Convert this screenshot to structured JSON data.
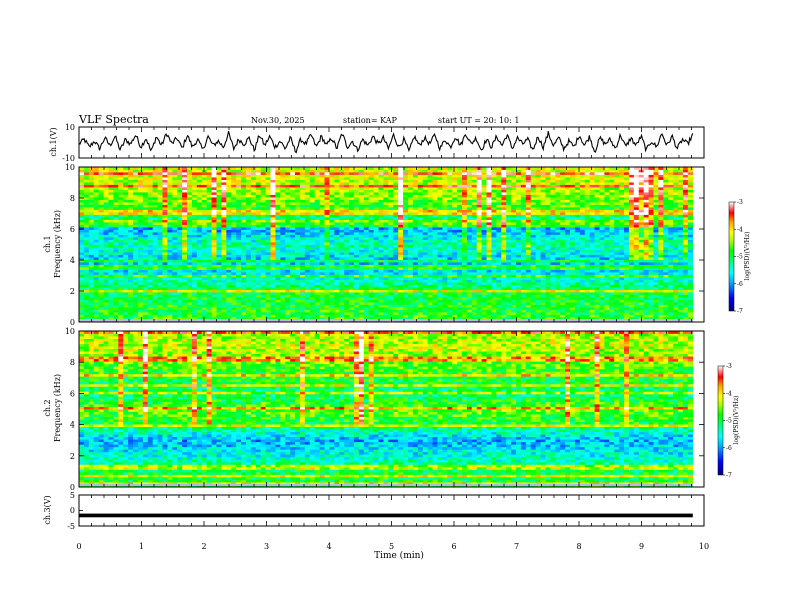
{
  "header": {
    "title": "VLF Spectra",
    "date": "Nov.30, 2025",
    "station": "station= KAP",
    "start": "start  UT  =   20: 10: 1"
  },
  "colors": {
    "scale": [
      "#000080",
      "#0000ff",
      "#00a0ff",
      "#00ffff",
      "#00ff80",
      "#00ff00",
      "#80ff00",
      "#ffff00",
      "#ffa000",
      "#ff0000",
      "#ffffff"
    ]
  },
  "chart_data": [
    {
      "type": "line",
      "id": "ch1_waveform",
      "ylabel": "ch.1(V)",
      "ylim": [
        -10,
        10
      ],
      "yticks": [
        "10",
        "-10"
      ],
      "x_range_min": [
        0,
        9.82
      ],
      "series": [
        {
          "name": "ch1",
          "values": [
            -1,
            2,
            -3,
            1,
            -4,
            3,
            -2,
            4,
            -5,
            2,
            -1,
            5,
            -3,
            3,
            -6,
            4,
            -2,
            6,
            -1,
            3,
            -4,
            5,
            -3,
            2,
            -5,
            4,
            -2,
            1,
            -3,
            6,
            -4,
            2,
            -1,
            3,
            -5,
            5,
            -2,
            4,
            -3,
            1,
            -4,
            3,
            -6,
            2,
            -1,
            5,
            -3,
            4,
            -2,
            3,
            -4,
            6,
            -3,
            1,
            -5,
            2,
            -2,
            4,
            -1,
            3,
            -4,
            5,
            -3,
            2,
            -6,
            4,
            -2,
            3,
            -1,
            5,
            -4,
            2,
            -3,
            4,
            -2,
            6,
            -1,
            3,
            -5,
            2,
            -3,
            4,
            -2,
            5,
            -4,
            3,
            -1,
            2,
            -5,
            4,
            -3,
            6,
            -2,
            3,
            -4,
            1,
            -3,
            5,
            -2,
            4,
            -6,
            3,
            -1,
            2,
            -4,
            5,
            -3,
            3,
            -2,
            4,
            -5,
            1,
            -3,
            6,
            -2,
            4,
            -4,
            2,
            -1,
            5
          ]
        }
      ]
    },
    {
      "type": "heatmap",
      "id": "ch1_spectrogram",
      "ylabel": "ch.1\nFrequency (kHz)",
      "ylabel_line1": "ch.1",
      "ylabel_line2": "Frequency (kHz)",
      "ylim": [
        0,
        10
      ],
      "yticks": [
        "0",
        "2",
        "4",
        "6",
        "8",
        "10"
      ],
      "x_range_min": [
        0,
        9.82
      ],
      "colorbar": {
        "label": "log(PSD)(V²/Hz)",
        "range": [
          -7,
          -3
        ],
        "ticks": [
          "-3",
          "-4",
          "-5",
          "-6",
          "-7"
        ]
      },
      "freq_profile_khz": [
        0,
        1,
        2,
        3,
        4,
        5,
        6,
        7,
        8,
        9,
        10
      ],
      "mean_log_psd": [
        -4.8,
        -4.9,
        -5.0,
        -5.6,
        -5.8,
        -5.3,
        -5.9,
        -4.9,
        -4.5,
        -4.3,
        -4.2
      ]
    },
    {
      "type": "heatmap",
      "id": "ch2_spectrogram",
      "ylabel": "ch.2\nFrequency (kHz)",
      "ylabel_line1": "ch.2",
      "ylabel_line2": "Frequency (kHz)",
      "ylim": [
        0,
        10
      ],
      "yticks": [
        "0",
        "2",
        "4",
        "6",
        "8",
        "10"
      ],
      "x_range_min": [
        0,
        9.82
      ],
      "colorbar": {
        "label": "log(PSD)(V²/Hz)",
        "range": [
          -7,
          -3
        ],
        "ticks": [
          "-3",
          "-4",
          "-5",
          "-6",
          "-7"
        ]
      },
      "freq_profile_khz": [
        0,
        1,
        2,
        3,
        4,
        5,
        6,
        7,
        8,
        9,
        10
      ],
      "mean_log_psd": [
        -4.9,
        -5.0,
        -5.5,
        -5.9,
        -5.0,
        -4.6,
        -5.2,
        -4.9,
        -4.6,
        -4.3,
        -4.4
      ]
    },
    {
      "type": "line",
      "id": "ch3_waveform",
      "ylabel": "ch.3(V)",
      "ylim": [
        -5,
        5
      ],
      "yticks": [
        "5",
        "0",
        "-5"
      ],
      "x_range_min": [
        0,
        9.82
      ],
      "series": [
        {
          "name": "ch3",
          "level": -1.6,
          "amplitude": 0.6
        }
      ]
    }
  ],
  "xaxis": {
    "label": "Time  (min)",
    "range": [
      0,
      10
    ],
    "ticks": [
      "0",
      "1",
      "2",
      "3",
      "4",
      "5",
      "6",
      "7",
      "8",
      "9",
      "10"
    ]
  }
}
